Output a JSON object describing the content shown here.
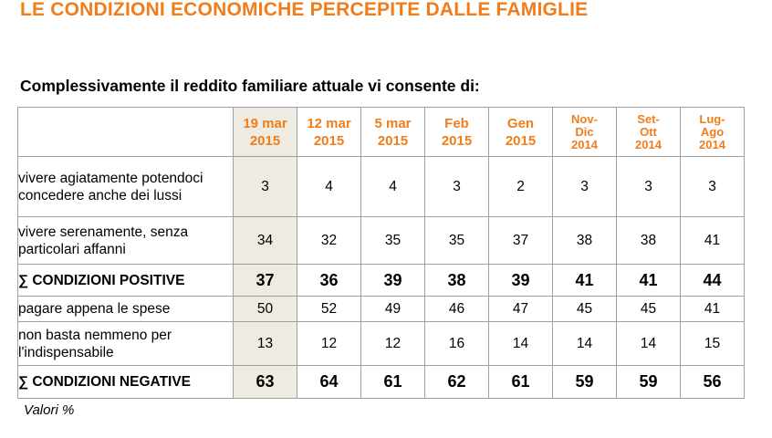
{
  "title": "LE CONDIZIONI ECONOMICHE PERCEPITE DALLE FAMIGLIE",
  "subtitle": "Complessivamente il reddito familiare attuale vi consente di:",
  "columns": [
    {
      "line1": "19 mar",
      "line2": "2015"
    },
    {
      "line1": "12 mar",
      "line2": "2015"
    },
    {
      "line1": "5 mar",
      "line2": "2015"
    },
    {
      "line1": "Feb",
      "line2": "2015"
    },
    {
      "line1": "Gen",
      "line2": "2015"
    },
    {
      "line1": "Nov-",
      "line2": "Dic",
      "line3": "2014"
    },
    {
      "line1": "Set-",
      "line2": "Ott",
      "line3": "2014"
    },
    {
      "line1": "Lug-",
      "line2": "Ago",
      "line3": "2014"
    }
  ],
  "rows": [
    {
      "label": "vivere agiatamente potendoci concedere anche dei lussi",
      "values": [
        "3",
        "4",
        "4",
        "3",
        "2",
        "3",
        "3",
        "3"
      ]
    },
    {
      "label": "vivere serenamente, senza particolari affanni",
      "values": [
        "34",
        "32",
        "35",
        "35",
        "37",
        "38",
        "38",
        "41"
      ]
    },
    {
      "label": "∑ CONDIZIONI POSITIVE",
      "values": [
        "37",
        "36",
        "39",
        "38",
        "39",
        "41",
        "41",
        "44"
      ]
    },
    {
      "label": "pagare appena le spese",
      "values": [
        "50",
        "52",
        "49",
        "46",
        "47",
        "45",
        "45",
        "41"
      ]
    },
    {
      "label": "non basta nemmeno per l'indispensabile",
      "values": [
        "13",
        "12",
        "12",
        "16",
        "14",
        "14",
        "14",
        "15"
      ]
    },
    {
      "label": "∑ CONDIZIONI NEGATIVE",
      "values": [
        "63",
        "64",
        "61",
        "62",
        "61",
        "59",
        "59",
        "56"
      ]
    }
  ],
  "footnote": "Valori %",
  "colors": {
    "accent": "#f07d1a",
    "highlight_column": "#eeebe2",
    "border": "#a0a0a0"
  }
}
